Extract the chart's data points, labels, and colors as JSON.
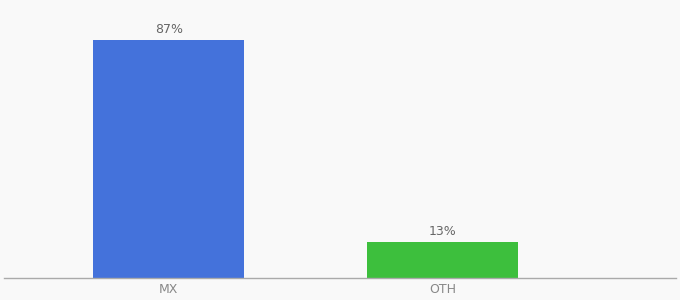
{
  "categories": [
    "MX",
    "OTH"
  ],
  "values": [
    87,
    13
  ],
  "bar_colors": [
    "#4472db",
    "#3dbf3d"
  ],
  "label_texts": [
    "87%",
    "13%"
  ],
  "ylim": [
    0,
    100
  ],
  "background_color": "#f9f9f9",
  "label_fontsize": 9,
  "tick_fontsize": 9,
  "label_color": "#666666",
  "tick_color": "#888888",
  "bar_width": 0.55,
  "bar_positions": [
    1,
    2
  ],
  "xlim": [
    0.4,
    2.85
  ]
}
